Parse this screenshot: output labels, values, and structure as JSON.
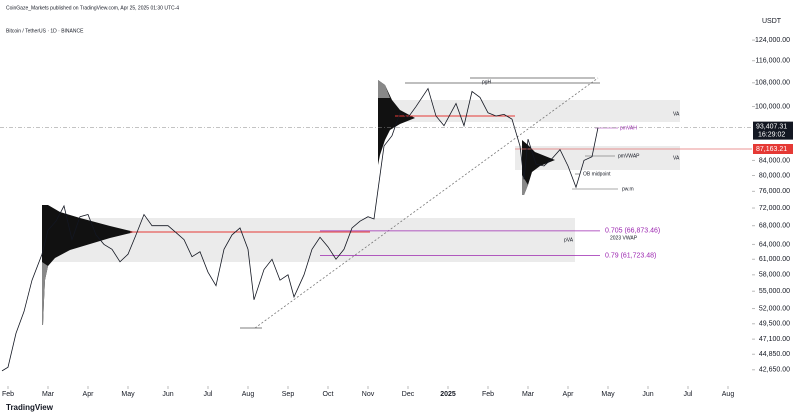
{
  "chart_data": {
    "type": "line",
    "subtitle": "CoinGaze_Markets published on TradingView.com, Apr 25, 2025 01:30 UTC-4",
    "title": "Bitcoin / TetherUS · 1D · BINANCE",
    "y_unit": "USDT",
    "footer": "TradingView",
    "log_scale": true,
    "color": "#131722",
    "x": [
      0.85,
      1.0,
      1.2,
      1.4,
      1.6,
      1.85,
      2.0,
      2.2,
      2.4,
      2.6,
      2.8,
      3.0,
      3.2,
      3.4,
      3.6,
      3.8,
      4.0,
      4.2,
      4.4,
      4.6,
      4.8,
      5.0,
      5.2,
      5.4,
      5.6,
      5.8,
      6.0,
      6.2,
      6.4,
      6.6,
      6.8,
      7.0,
      7.15,
      7.4,
      7.6,
      7.8,
      8.0,
      8.15,
      8.4,
      8.6,
      8.8,
      9.0,
      9.2,
      9.4,
      9.6,
      9.8,
      10.0,
      10.15,
      10.4,
      10.6,
      10.8,
      11.0,
      11.2,
      11.5,
      11.7,
      11.9,
      12.2,
      12.4,
      12.6,
      12.8,
      13.0,
      13.2,
      13.4,
      13.6,
      13.8,
      13.9,
      14.0,
      14.2,
      14.4,
      14.6,
      14.8,
      15.0,
      15.2,
      15.4,
      15.6,
      15.75
    ],
    "values": [
      42500,
      43000,
      48000,
      51500,
      57000,
      62000,
      67000,
      69000,
      72500,
      65000,
      70000,
      70500,
      66000,
      64000,
      63000,
      60500,
      62000,
      66000,
      70500,
      68000,
      68000,
      68000,
      66500,
      65000,
      61500,
      62500,
      58500,
      56000,
      63000,
      66000,
      67500,
      63000,
      53500,
      59000,
      61000,
      57000,
      58000,
      54000,
      58000,
      63000,
      65500,
      63500,
      61000,
      63000,
      67500,
      69000,
      70000,
      69500,
      88000,
      91000,
      98000,
      96500,
      100000,
      106000,
      97000,
      94000,
      101000,
      94000,
      105000,
      103000,
      98000,
      97000,
      97500,
      96000,
      88000,
      79000,
      90000,
      83000,
      82500,
      84500,
      87000,
      82500,
      77000,
      84000,
      85000,
      93407.31
    ],
    "xlim": [
      0.8,
      19.55
    ],
    "xticks": [
      {
        "value": 1,
        "label": "Feb"
      },
      {
        "value": 2,
        "label": "Mar"
      },
      {
        "value": 3,
        "label": "Apr"
      },
      {
        "value": 4,
        "label": "May"
      },
      {
        "value": 5,
        "label": "Jun"
      },
      {
        "value": 6,
        "label": "Jul"
      },
      {
        "value": 7,
        "label": "Aug"
      },
      {
        "value": 8,
        "label": "Sep"
      },
      {
        "value": 9,
        "label": "Oct"
      },
      {
        "value": 10,
        "label": "Nov"
      },
      {
        "value": 11,
        "label": "Dec"
      },
      {
        "value": 12,
        "label": "2025"
      },
      {
        "value": 13,
        "label": "Feb"
      },
      {
        "value": 14,
        "label": "Mar"
      },
      {
        "value": 15,
        "label": "Apr"
      },
      {
        "value": 16,
        "label": "May"
      },
      {
        "value": 17,
        "label": "Jun"
      },
      {
        "value": 18,
        "label": "Jul"
      },
      {
        "value": 19,
        "label": "Aug"
      }
    ],
    "ylim": [
      40600,
      134500
    ],
    "yticks": [
      {
        "value": 124000,
        "label": "124,000.00"
      },
      {
        "value": 116000,
        "label": "116,000.00"
      },
      {
        "value": 108000,
        "label": "108,000.00"
      },
      {
        "value": 100000,
        "label": "100,000.00"
      },
      {
        "value": 84000,
        "label": "84,000.00"
      },
      {
        "value": 80000,
        "label": "80,000.00"
      },
      {
        "value": 76000,
        "label": "76,000.00"
      },
      {
        "value": 72000,
        "label": "72,000.00"
      },
      {
        "value": 68000,
        "label": "68,000.00"
      },
      {
        "value": 64000,
        "label": "64,000.00"
      },
      {
        "value": 61000,
        "label": "61,000.00"
      },
      {
        "value": 58000,
        "label": "58,000.00"
      },
      {
        "value": 55000,
        "label": "55,000.00"
      },
      {
        "value": 52000,
        "label": "52,000.00"
      },
      {
        "value": 49500,
        "label": "49,500.00"
      },
      {
        "value": 47100,
        "label": "47,100.00"
      },
      {
        "value": 44850,
        "label": "44,850.00"
      },
      {
        "value": 42650,
        "label": "42,650.00"
      }
    ],
    "last_price": {
      "value": 93407.31,
      "label": "93,407.31",
      "countdown": "16:29:02"
    },
    "level": {
      "value": 87163.21,
      "label": "87,163.21"
    },
    "fib_levels": [
      {
        "value": 66873.46,
        "label": "0.705 (66,873.46)"
      },
      {
        "value": 61723.48,
        "label": "0.79 (61,723.48)"
      }
    ],
    "annotations": [
      "pgH",
      "VA",
      "VA",
      "pVA",
      "2023 VWAP",
      "pmVWAP",
      "OB midpoint",
      "pw.m",
      "pmVAH"
    ]
  }
}
